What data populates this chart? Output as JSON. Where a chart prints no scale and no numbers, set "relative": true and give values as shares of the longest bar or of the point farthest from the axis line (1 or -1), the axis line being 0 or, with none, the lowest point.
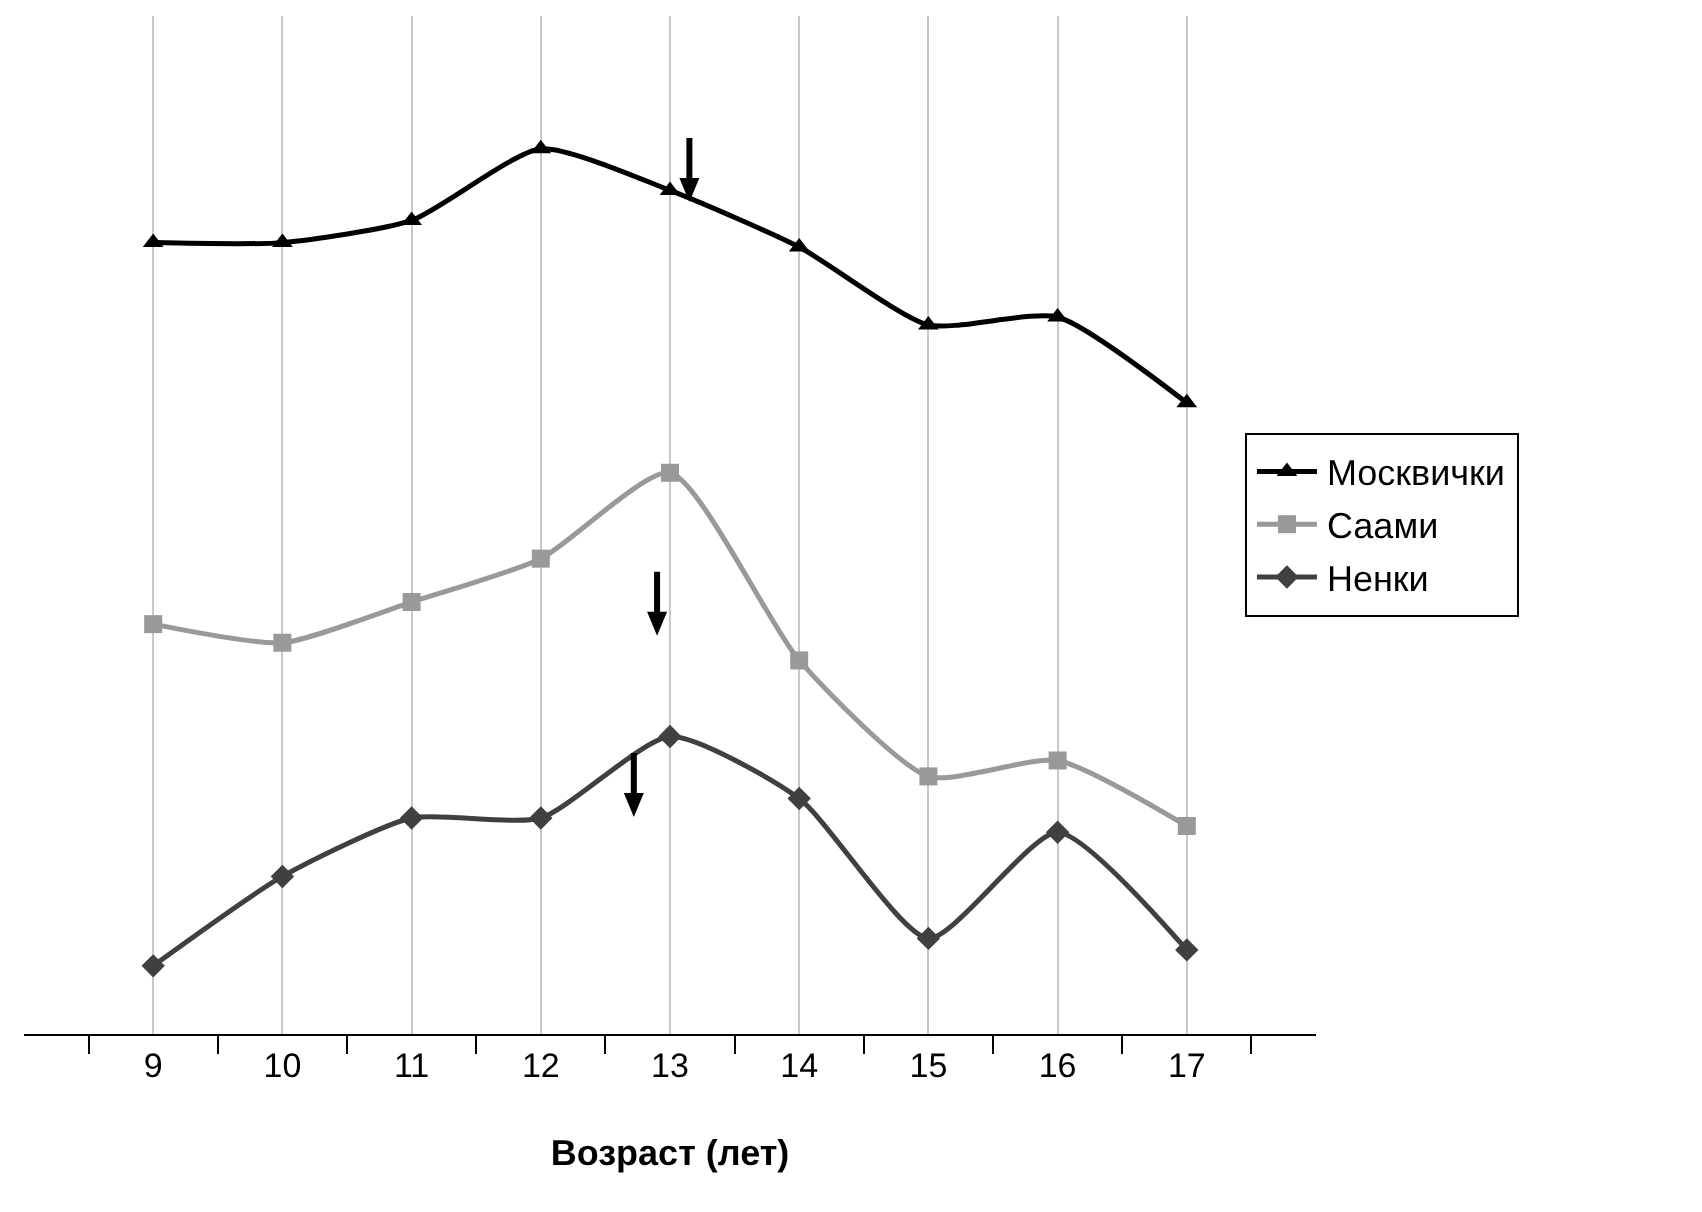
{
  "chart_data": {
    "type": "line",
    "relative": true,
    "xlabel": "Возраст (лет)",
    "categories": [
      "9",
      "10",
      "11",
      "12",
      "13",
      "14",
      "15",
      "16",
      "17"
    ],
    "series": [
      {
        "name": "Москвички",
        "color": "#000000",
        "marker": "triangle",
        "values": [
          0.894,
          0.894,
          0.919,
          1.0,
          0.953,
          0.889,
          0.801,
          0.81,
          0.713
        ]
      },
      {
        "name": "Саами",
        "color": "#999999",
        "marker": "square",
        "values": [
          0.463,
          0.442,
          0.488,
          0.537,
          0.634,
          0.422,
          0.291,
          0.309,
          0.235
        ]
      },
      {
        "name": "Ненки",
        "color": "#404040",
        "marker": "diamond",
        "values": [
          0.077,
          0.178,
          0.244,
          0.244,
          0.336,
          0.266,
          0.108,
          0.228,
          0.095
        ]
      }
    ],
    "grid": "x",
    "legend": "right",
    "line_style": "solid"
  }
}
